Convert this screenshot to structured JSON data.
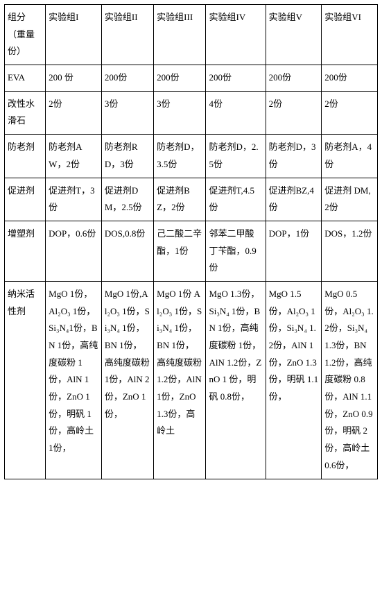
{
  "table": {
    "colors": {
      "border": "#000000",
      "text": "#000000",
      "background": "#ffffff"
    },
    "typography": {
      "font_family": "SimSun",
      "font_size_pt": 10,
      "line_height": 1.9
    },
    "column_widths_pct": [
      11,
      15,
      14,
      14,
      16,
      15,
      15
    ],
    "rows": [
      [
        "组分（重量份）",
        "实验组I",
        "实验组II",
        "实验组III",
        "实验组IV",
        "实验组V",
        "实验组VI"
      ],
      [
        "EVA",
        "200 份",
        "200份",
        "200份",
        "200份",
        "200份",
        "200份"
      ],
      [
        "改性水滑石",
        "2份",
        "3份",
        "3份",
        "4份",
        "2份",
        "2份"
      ],
      [
        "防老剂",
        "防老剂AW，2份",
        "防老剂RD，3份",
        "防老剂D，3.5份",
        "防老剂D，2.5份",
        "防老剂D，3份",
        "防老剂A，4份"
      ],
      [
        "促进剂",
        "促进剂T，3份",
        "促进剂DM，2.5份",
        "促进剂BZ，2份",
        "促进剂T,4.5份",
        "促进剂BZ,4份",
        "促进剂 DM,2份"
      ],
      [
        "增塑剂",
        "DOP，0.6份",
        "DOS,0.8份",
        "己二酸二辛酯，1份",
        "邻苯二甲酸丁苄酯，0.9份",
        "DOP，1份",
        "DOS，1.2份"
      ],
      [
        "纳米活性剂",
        "MgO 1份，Al₂O₃ 1份，Si₃N₄1份，BN 1份，高纯度碳粉 1份，AlN 1份，ZnO 1份，明矾 1份，高岭土 1份，",
        "MgO 1份,Al₂O₃ 1份，Si₃N₄ 1份，BN 1份，高纯度碳粉 1份，AlN 2份，ZnO 1份，",
        "MgO 1份 Al₂O₃ 1份，Si₃N₄ 1份，BN 1份，高纯度碳粉1.2份，AlN 1份，ZnO 1.3份，高岭土",
        "MgO 1.3份，Si₃N₄ 1份，BN 1份，高纯度碳粉 1份，AlN 1.2份，ZnO 1 份，明矾 0.8份，",
        "MgO 1.5份，Al₂O₃ 1份，Si₃N₄ 1.2份，AlN 1份，ZnO 1.3份，明矾 1.1份，",
        "MgO 0.5份，Al₂O₃ 1.2份，Si₃N₄ 1.3份，BN 1.2份，高纯度碳粉 0.8份，AlN 1.1份，ZnO 0.9份，明矾 2份，高岭土0.6份，"
      ]
    ]
  }
}
